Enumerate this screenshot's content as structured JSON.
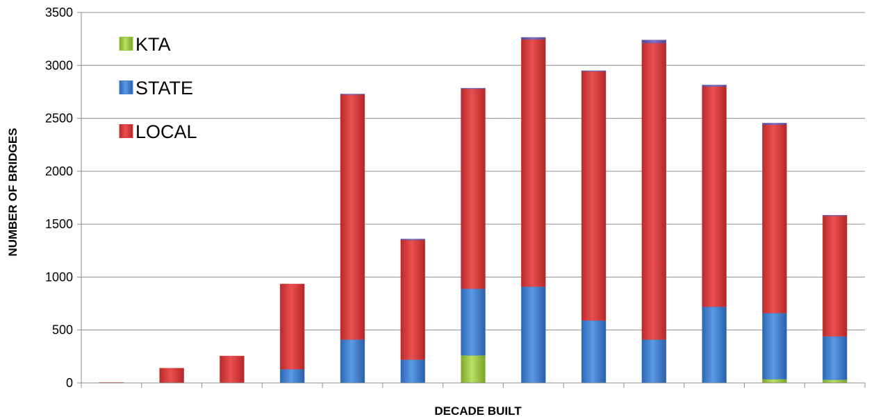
{
  "chart_data": {
    "type": "bar",
    "stacked": true,
    "title": "",
    "xlabel": "DECADE BUILT",
    "ylabel": "NUMBER OF BRIDGES",
    "ylim": [
      0,
      3500
    ],
    "yticks": [
      0,
      500,
      1000,
      1500,
      2000,
      2500,
      3000,
      3500
    ],
    "grid": true,
    "legend_position": "top-left",
    "categories": [
      "",
      "",
      "",
      "",
      "",
      "",
      "",
      "",
      "",
      "",
      "",
      "",
      ""
    ],
    "series": [
      {
        "name": "KTA",
        "color": "#9bc93c",
        "values": [
          0,
          0,
          0,
          0,
          0,
          0,
          260,
          0,
          0,
          0,
          0,
          35,
          30
        ]
      },
      {
        "name": "STATE",
        "color": "#3f7fd0",
        "values": [
          0,
          0,
          0,
          130,
          410,
          220,
          630,
          910,
          590,
          410,
          720,
          625,
          410
        ]
      },
      {
        "name": "LOCAL",
        "color": "#d63a3a",
        "values": [
          5,
          140,
          255,
          805,
          2315,
          1130,
          1890,
          2335,
          2355,
          2800,
          2080,
          1780,
          1140
        ]
      }
    ],
    "extra_series": {
      "name": "",
      "color": "#6a5aa8",
      "values": [
        0,
        0,
        0,
        0,
        5,
        10,
        5,
        20,
        5,
        30,
        15,
        15,
        5
      ]
    }
  }
}
